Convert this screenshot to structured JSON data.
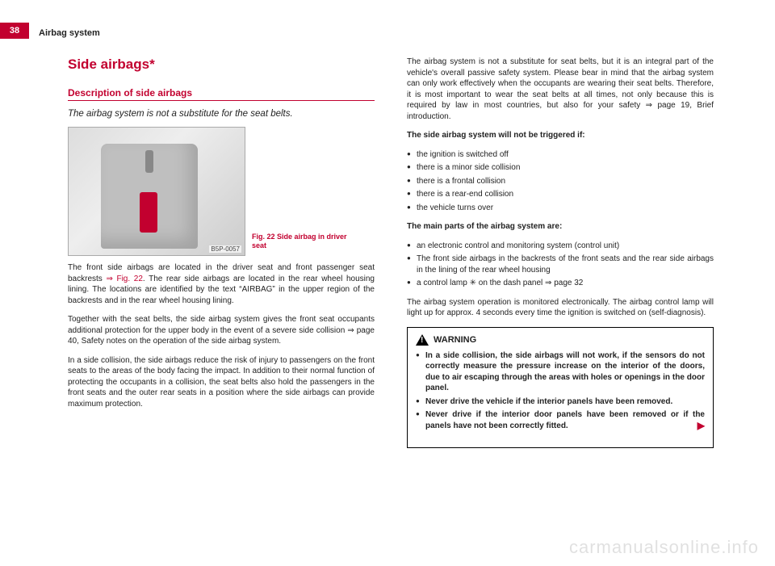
{
  "page_number": "38",
  "header": "Airbag system",
  "title": "Side airbags*",
  "subtitle": "Description of side airbags",
  "lead": "The airbag system is not a substitute for the seat belts.",
  "fig_ref": "B5P-0057",
  "fig_caption": "Fig. 22   Side airbag in driver seat",
  "left_p1_a": "The front side airbags are located in the driver seat and front passenger seat backrests ",
  "left_p1_figref": "⇒ Fig. 22",
  "left_p1_b": ". The rear side airbags are located in the rear wheel housing lining. The locations are identified by the text “AIRBAG” in the upper region of the backrests and in the rear wheel housing lining.",
  "left_p2": "Together with the seat belts, the side airbag system gives the front seat occupants additional protection for the upper body in the event of a severe side collision ⇒ page 40, Safety notes on the operation of the side airbag system.",
  "left_p3": "In a side collision, the side airbags reduce the risk of injury to passengers on the front seats to the areas of the body facing the impact. In addition to their normal function of protecting the occupants in a collision, the seat belts also hold the passengers in the front seats and the outer rear seats in a position where the side airbags can provide maximum protection.",
  "right_p1": "The airbag system is not a substitute for seat belts, but it is an integral part of the vehicle's overall passive safety system. Please bear in mind that the airbag system can only work effectively when the occupants are wearing their seat belts. Therefore, it is most important to wear the seat belts at all times, not only because this is required by law in most countries, but also for your safety ⇒ page 19, Brief introduction.",
  "not_triggered_head": "The side airbag system will not be triggered if:",
  "nt": [
    "the ignition is switched off",
    "there is a minor side collision",
    "there is a frontal collision",
    "there is a rear-end collision",
    "the vehicle turns over"
  ],
  "main_parts_head": "The main parts of the airbag system are:",
  "mp1": "an electronic control and monitoring system (control unit)",
  "mp2": "The front side airbags in the backrests of the front seats and the rear side airbags in the lining of the rear wheel housing",
  "mp3_a": "a control lamp ",
  "mp3_b": " on the dash panel ⇒ page 32",
  "right_p2": "The airbag system operation is monitored electronically. The airbag control lamp will light up for approx. 4 seconds every time the ignition is switched on (self-diagnosis).",
  "warn_label": "WARNING",
  "warn1": "In a side collision, the side airbags will not work, if the sensors do not correctly measure the pressure increase on the interior of the doors, due to air escaping through the areas with holes or openings in the door panel.",
  "warn2": "Never drive the vehicle if the interior panels have been removed.",
  "warn3": "Never drive if the interior door panels have been removed or if the panels have not been correctly fitted.",
  "watermark": "carmanualsonline.info"
}
